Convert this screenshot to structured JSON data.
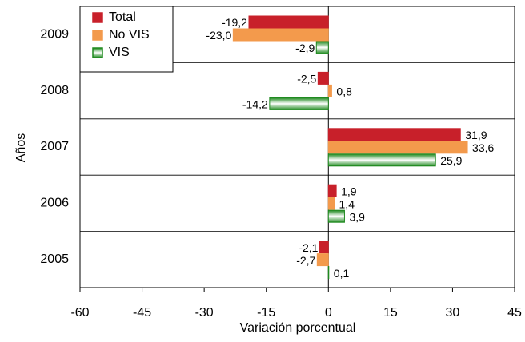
{
  "chart_data": {
    "type": "bar",
    "orientation": "horizontal",
    "xlabel": "Variación porcentual",
    "ylabel": "Años",
    "categories": [
      "2009",
      "2008",
      "2007",
      "2006",
      "2005"
    ],
    "series": [
      {
        "name": "Total",
        "color": "#c8202a",
        "values": [
          -19.2,
          -2.5,
          31.9,
          1.9,
          -2.1
        ],
        "value_labels": [
          "-19,2",
          "-2,5",
          "31,9",
          "1,9",
          "-2,1"
        ]
      },
      {
        "name": "No VIS",
        "color": "#f39a4c",
        "values": [
          -23.0,
          0.8,
          33.6,
          1.4,
          -2.7
        ],
        "value_labels": [
          "-23,0",
          "0,8",
          "33,6",
          "1,4",
          "-2,7"
        ]
      },
      {
        "name": "VIS",
        "color": "#1f8a1f",
        "values": [
          -2.9,
          -14.2,
          25.9,
          3.9,
          0.1
        ],
        "value_labels": [
          "-2,9",
          "-14,2",
          "25,9",
          "3,9",
          "0,1"
        ]
      }
    ],
    "xlim": [
      -60,
      45
    ],
    "xticks": [
      -60,
      -45,
      -30,
      -15,
      0,
      15,
      30,
      45
    ],
    "legend": "upper left"
  }
}
